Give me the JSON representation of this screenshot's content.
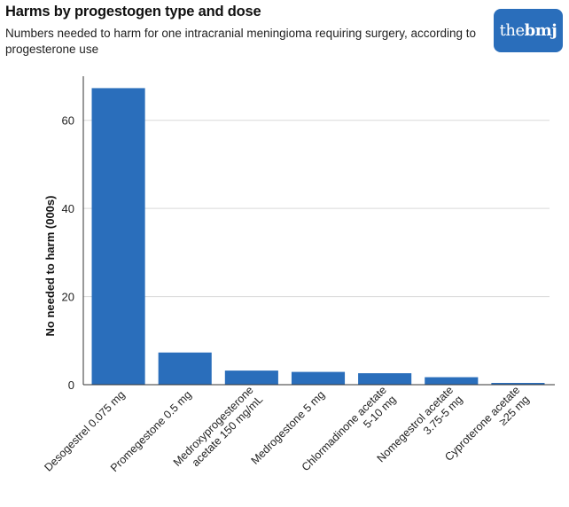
{
  "header": {
    "title": "Harms by progestogen type and dose",
    "subtitle": "Numbers needed to harm for one intracranial meningioma requiring surgery, according to progesterone use",
    "logo_text_a": "the",
    "logo_text_b": "bmj"
  },
  "colors": {
    "bar": "#2a6ebb",
    "logo_bg": "#2a6ebb",
    "grid": "#d9d9d9",
    "axis": "#333333"
  },
  "chart_data": {
    "type": "bar",
    "title": "Harms by progestogen type and dose",
    "subtitle": "Numbers needed to harm for one intracranial meningioma requiring surgery, according to progesterone use",
    "xlabel": "",
    "ylabel": "No needed to harm (000s)",
    "ylim": [
      0,
      70
    ],
    "yticks": [
      0,
      20,
      40,
      60
    ],
    "grid": true,
    "categories": [
      [
        "Desogestrel 0.075 mg"
      ],
      [
        "Promegestone 0.5 mg"
      ],
      [
        "Medroxyprogesterone",
        "acetate 150 mg/mL"
      ],
      [
        "Medrogestone 5 mg"
      ],
      [
        "Chlormadinone acetate",
        "5-10 mg"
      ],
      [
        "Nomegestrol acetate",
        "3.75-5 mg"
      ],
      [
        "Cyproterone acetate",
        "≥25 mg"
      ]
    ],
    "values": [
      67.3,
      7.3,
      3.2,
      2.9,
      2.6,
      1.7,
      0.4
    ]
  }
}
